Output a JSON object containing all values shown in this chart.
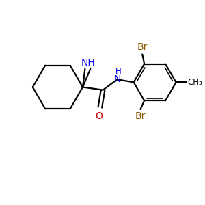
{
  "bond_color": "#000000",
  "n_color": "#0000EE",
  "o_color": "#CC0000",
  "br_color": "#8B5A00",
  "background": "#FFFFFF",
  "figsize": [
    3.0,
    3.0
  ],
  "dpi": 100,
  "lw": 1.6,
  "lw_thin": 1.2,
  "fs_large": 10,
  "fs_small": 8.5,
  "xlim": [
    0,
    10
  ],
  "ylim": [
    0,
    10
  ]
}
